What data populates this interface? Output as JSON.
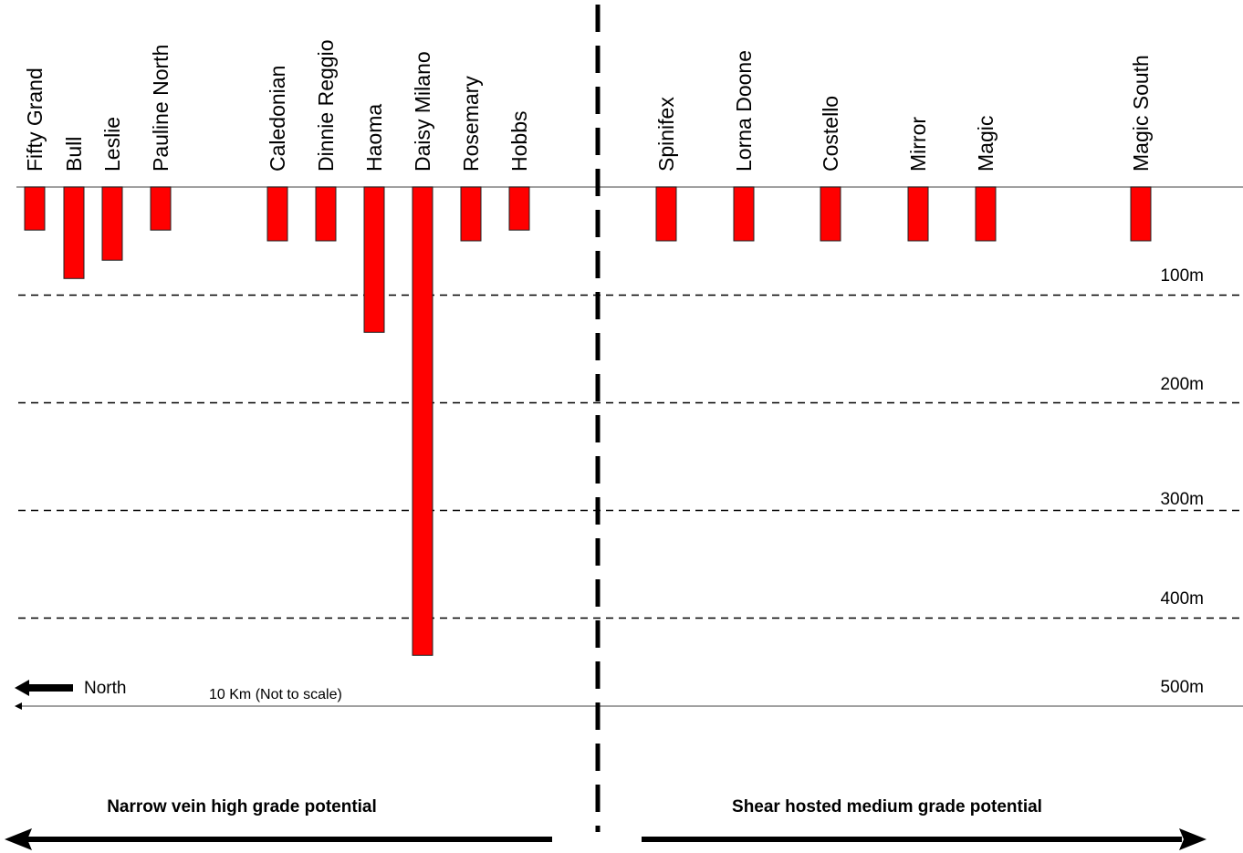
{
  "chart_data": {
    "type": "bar",
    "orientation": "vertical-downward",
    "value_unit": "m",
    "categories": [
      "Fifty Grand",
      "Bull",
      "Leslie",
      "Pauline North",
      "Caledonian",
      "Dinnie Reggio",
      "Haoma",
      "Daisy Milano",
      "Rosemary",
      "Hobbs",
      "Spinifex",
      "Lorna Doone",
      "Costello",
      "Mirror",
      "Magic",
      "Magic South"
    ],
    "values": [
      40,
      85,
      68,
      40,
      50,
      50,
      135,
      435,
      50,
      40,
      50,
      50,
      50,
      50,
      50,
      50
    ],
    "depth_range": [
      0,
      500
    ],
    "depth_gridlines": [
      {
        "value": 100,
        "label": "100m"
      },
      {
        "value": 200,
        "label": "200m"
      },
      {
        "value": 300,
        "label": "300m"
      },
      {
        "value": 400,
        "label": "400m"
      },
      {
        "value": 500,
        "label": "500m"
      }
    ],
    "bar_color": "#ff0000",
    "grid": "dashed",
    "north_label": "North",
    "scale_label": "10 Km (Not to scale)",
    "zones": [
      {
        "label": "Narrow vein high grade potential"
      },
      {
        "label": "Shear hosted medium grade potential"
      }
    ]
  }
}
